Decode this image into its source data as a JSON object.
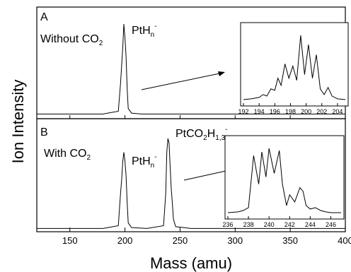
{
  "chart_data": [
    {
      "type": "line",
      "panel_label": "A",
      "annotations": {
        "condition": "Without CO",
        "condition_sub": "2",
        "peak_label": "PtH",
        "peak_label_sub": "n",
        "peak_label_sup": "-"
      },
      "ylabel": "Ion Intensity",
      "xlim": [
        120,
        400
      ],
      "series": [
        {
          "x": [
            120,
            150,
            180,
            194,
            196,
            197,
            198,
            199,
            200,
            201,
            202,
            203,
            206,
            215,
            240,
            270,
            300,
            330,
            360,
            400
          ],
          "values": [
            0.02,
            0.02,
            0.02,
            0.05,
            0.35,
            0.55,
            0.75,
            1.0,
            0.85,
            0.65,
            0.3,
            0.08,
            0.03,
            0.02,
            0.02,
            0.02,
            0.02,
            0.02,
            0.02,
            0.02
          ]
        }
      ],
      "inset": {
        "xlim": [
          192,
          205
        ],
        "ylim": [
          0,
          1.05
        ],
        "xticks": [
          "192",
          "194",
          "196",
          "198",
          "200",
          "202",
          "204"
        ],
        "series": [
          {
            "x": [
              192,
              193,
              194,
              194.5,
              195,
              195.5,
              196,
              196.4,
              196.8,
              197.3,
              197.8,
              198.3,
              198.8,
              199.3,
              199.8,
              200.3,
              200.8,
              201.3,
              201.8,
              202.3,
              202.8,
              203.3,
              204,
              205
            ],
            "values": [
              0.05,
              0.06,
              0.08,
              0.12,
              0.1,
              0.2,
              0.18,
              0.35,
              0.25,
              0.55,
              0.35,
              0.52,
              0.32,
              0.95,
              0.4,
              0.82,
              0.35,
              0.68,
              0.2,
              0.12,
              0.22,
              0.1,
              0.06,
              0.05
            ]
          }
        ]
      }
    },
    {
      "type": "line",
      "panel_label": "B",
      "annotations": {
        "condition": "With CO",
        "condition_sub": "2",
        "peak_label": "PtH",
        "peak_label_sub": "n",
        "peak_label_sup": "-",
        "peak2_label": "PtCO",
        "peak2_label_sub1": "2",
        "peak2_label_mid": "H",
        "peak2_label_sub2": "1,3",
        "peak2_label_sup": "-"
      },
      "xlabel": "Mass (amu)",
      "xlim": [
        120,
        400
      ],
      "xticks": [
        "150",
        "200",
        "250",
        "300",
        "350",
        "400"
      ],
      "series": [
        {
          "x": [
            120,
            150,
            180,
            194,
            196,
            197,
            198,
            199,
            200,
            201,
            202,
            203,
            206,
            220,
            235,
            237,
            238,
            239,
            240,
            241,
            242,
            243,
            244,
            246,
            260,
            300,
            340,
            360,
            400
          ],
          "values": [
            0.02,
            0.02,
            0.02,
            0.05,
            0.4,
            0.55,
            0.75,
            0.85,
            0.75,
            0.6,
            0.3,
            0.08,
            0.03,
            0.02,
            0.05,
            0.4,
            0.85,
            1.0,
            0.95,
            0.7,
            0.45,
            0.3,
            0.12,
            0.04,
            0.02,
            0.02,
            0.02,
            0.02,
            0.02
          ]
        }
      ],
      "inset": {
        "xlim": [
          236,
          247
        ],
        "ylim": [
          0,
          1.05
        ],
        "xticks": [
          "236",
          "238",
          "240",
          "242",
          "244",
          "246"
        ],
        "series": [
          {
            "x": [
              236,
              237,
              237.5,
              238,
              238.5,
              239,
              239.3,
              239.7,
              240,
              240.5,
              241,
              241.3,
              241.7,
              242,
              242.5,
              243,
              243.3,
              243.6,
              244,
              244.5,
              245,
              245.5,
              246,
              247
            ],
            "values": [
              0.05,
              0.06,
              0.08,
              0.12,
              0.85,
              0.45,
              0.9,
              0.55,
              0.95,
              0.6,
              0.92,
              0.45,
              0.15,
              0.3,
              0.2,
              0.4,
              0.35,
              0.15,
              0.1,
              0.12,
              0.08,
              0.06,
              0.05,
              0.05
            ]
          }
        ]
      }
    }
  ]
}
